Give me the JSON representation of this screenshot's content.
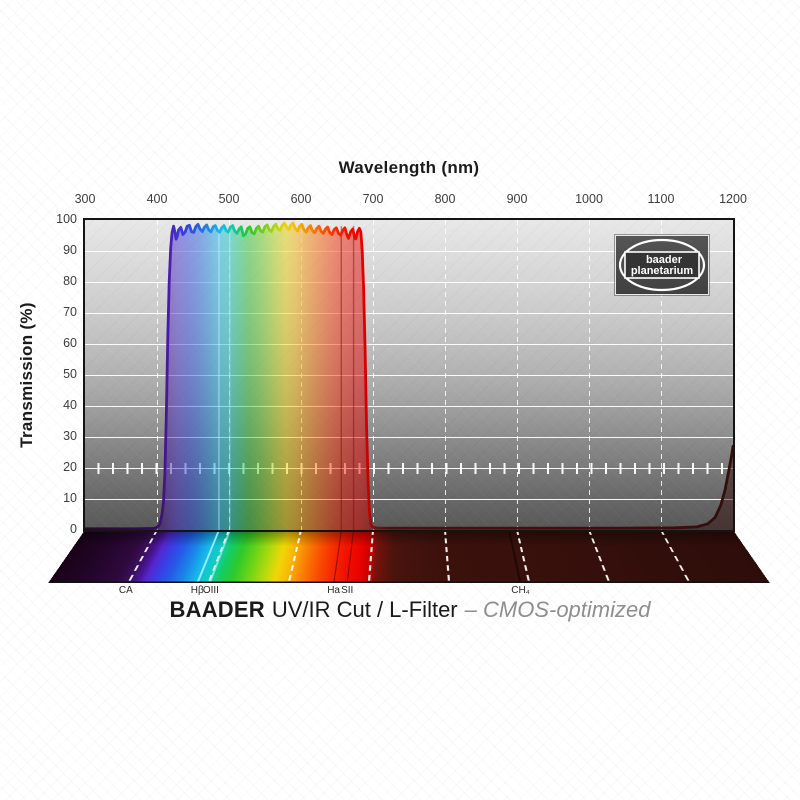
{
  "axes": {
    "x": {
      "title": "Wavelength (nm)",
      "ticks": [
        300,
        400,
        500,
        600,
        700,
        800,
        900,
        1000,
        1100,
        1200
      ]
    },
    "y": {
      "title": "Transmission (%)",
      "ticks": [
        0,
        10,
        20,
        30,
        40,
        50,
        60,
        70,
        80,
        90,
        100
      ]
    }
  },
  "logo": {
    "line1": "baader",
    "line2": "planetarium"
  },
  "caption": {
    "brand": "BAADER",
    "product": "UV/IR Cut / L-Filter",
    "variant": "– CMOS-optimized"
  },
  "floor_labels": [
    {
      "text": "CA",
      "nm": 397
    },
    {
      "text": "Hβ",
      "nm": 486
    },
    {
      "text": "OIII",
      "nm": 503
    },
    {
      "text": "Ha",
      "nm": 656
    },
    {
      "text": "SII",
      "nm": 673
    },
    {
      "text": "CH₄",
      "nm": 889
    }
  ],
  "chart_data": {
    "type": "area",
    "title": "BAADER UV/IR Cut / L-Filter – CMOS-optimized",
    "xlabel": "Wavelength (nm)",
    "ylabel": "Transmission (%)",
    "xlim": [
      300,
      1200
    ],
    "ylim": [
      0,
      100
    ],
    "x_ticks": [
      300,
      400,
      500,
      600,
      700,
      800,
      900,
      1000,
      1100,
      1200
    ],
    "y_ticks": [
      0,
      10,
      20,
      30,
      40,
      50,
      60,
      70,
      80,
      90,
      100
    ],
    "grid": {
      "h_step_percent": 10,
      "v_dashed_nm": [
        400,
        500,
        600,
        700,
        800,
        900,
        1000,
        1100
      ],
      "ruler_percent": 20
    },
    "passband_nm": [
      415,
      697
    ],
    "series": [
      {
        "name": "L-Filter transmission",
        "points": [
          [
            300,
            0.4
          ],
          [
            370,
            0.4
          ],
          [
            396,
            0.5
          ],
          [
            401,
            1
          ],
          [
            404,
            2
          ],
          [
            407,
            5
          ],
          [
            409,
            9
          ],
          [
            411,
            18
          ],
          [
            413,
            38
          ],
          [
            415,
            62
          ],
          [
            417,
            80
          ],
          [
            419,
            91
          ],
          [
            421,
            96
          ],
          [
            423,
            98
          ],
          [
            425,
            96
          ],
          [
            426.5,
            93.8
          ],
          [
            428,
            94.6
          ],
          [
            430,
            96.8
          ],
          [
            433,
            97.6
          ],
          [
            436,
            95.3
          ],
          [
            439,
            96.1
          ],
          [
            442,
            98
          ],
          [
            445,
            98.3
          ],
          [
            448,
            96.2
          ],
          [
            451,
            96
          ],
          [
            454,
            97.9
          ],
          [
            457,
            98.6
          ],
          [
            460,
            97
          ],
          [
            463,
            96.3
          ],
          [
            466,
            97.7
          ],
          [
            469,
            98.4
          ],
          [
            472,
            96.8
          ],
          [
            475,
            96.2
          ],
          [
            478,
            97.8
          ],
          [
            481,
            98.2
          ],
          [
            484,
            96.6
          ],
          [
            487,
            96.1
          ],
          [
            490,
            97.5
          ],
          [
            493,
            98.2
          ],
          [
            496,
            96.6
          ],
          [
            499,
            96.1
          ],
          [
            502,
            97.7
          ],
          [
            505,
            98.2
          ],
          [
            508,
            96.4
          ],
          [
            511,
            95.7
          ],
          [
            514,
            97.1
          ],
          [
            517,
            97.8
          ],
          [
            520,
            94.9
          ],
          [
            523,
            95.5
          ],
          [
            526,
            97.3
          ],
          [
            529,
            97.8
          ],
          [
            532,
            95.9
          ],
          [
            535,
            95.5
          ],
          [
            538,
            97.3
          ],
          [
            541,
            98
          ],
          [
            544,
            96.5
          ],
          [
            547,
            96.1
          ],
          [
            550,
            97.9
          ],
          [
            553,
            98.4
          ],
          [
            556,
            96.8
          ],
          [
            559,
            96.3
          ],
          [
            562,
            97.9
          ],
          [
            565,
            98.6
          ],
          [
            568,
            97.1
          ],
          [
            571,
            96.7
          ],
          [
            574,
            98.3
          ],
          [
            577,
            99
          ],
          [
            580,
            97.7
          ],
          [
            583,
            96.9
          ],
          [
            586,
            98.4
          ],
          [
            589,
            99
          ],
          [
            592,
            97.3
          ],
          [
            595,
            96.5
          ],
          [
            598,
            97.9
          ],
          [
            601,
            98.6
          ],
          [
            604,
            96.9
          ],
          [
            607,
            96.1
          ],
          [
            610,
            97.5
          ],
          [
            613,
            98.2
          ],
          [
            616,
            96.5
          ],
          [
            619,
            95.9
          ],
          [
            622,
            97.3
          ],
          [
            625,
            98
          ],
          [
            628,
            96.3
          ],
          [
            631,
            95.7
          ],
          [
            634,
            97.1
          ],
          [
            637,
            97.7
          ],
          [
            640,
            95.9
          ],
          [
            643,
            95.3
          ],
          [
            646,
            96.9
          ],
          [
            649,
            97.5
          ],
          [
            652,
            95.7
          ],
          [
            655,
            95.1
          ],
          [
            658,
            96.7
          ],
          [
            661,
            97.5
          ],
          [
            664,
            94.9
          ],
          [
            666,
            94.1
          ],
          [
            669,
            96.3
          ],
          [
            672,
            97.1
          ],
          [
            674,
            94.7
          ],
          [
            676,
            93.9
          ],
          [
            679,
            96.5
          ],
          [
            681,
            97.3
          ],
          [
            683,
            96.2
          ],
          [
            685,
            90
          ],
          [
            687,
            78
          ],
          [
            689,
            58
          ],
          [
            691,
            34
          ],
          [
            693,
            16
          ],
          [
            695,
            6
          ],
          [
            697,
            2
          ],
          [
            699,
            1
          ],
          [
            705,
            0.6
          ],
          [
            760,
            0.6
          ],
          [
            900,
            0.6
          ],
          [
            1050,
            0.6
          ],
          [
            1120,
            0.7
          ],
          [
            1150,
            1
          ],
          [
            1165,
            2
          ],
          [
            1175,
            4
          ],
          [
            1183,
            8
          ],
          [
            1189,
            13
          ],
          [
            1194,
            19
          ],
          [
            1198,
            24
          ],
          [
            1200,
            27
          ]
        ]
      }
    ],
    "spectral_lines": [
      {
        "label": "CA",
        "nm": 397
      },
      {
        "label": "Hβ",
        "nm": 486
      },
      {
        "label": "OIII",
        "nm": 501
      },
      {
        "label": "Ha",
        "nm": 656
      },
      {
        "label": "SII",
        "nm": 673
      },
      {
        "label": "CH₄",
        "nm": 889
      }
    ],
    "gradient_stops": [
      [
        300,
        "#2a0a28"
      ],
      [
        395,
        "#330b52"
      ],
      [
        408,
        "#3f1280"
      ],
      [
        418,
        "#4a1fb2"
      ],
      [
        428,
        "#4431d2"
      ],
      [
        443,
        "#2f46e0"
      ],
      [
        458,
        "#2563e4"
      ],
      [
        472,
        "#1b8ae4"
      ],
      [
        486,
        "#16b5e8"
      ],
      [
        500,
        "#10c9c0"
      ],
      [
        514,
        "#17c96e"
      ],
      [
        528,
        "#2ec72e"
      ],
      [
        546,
        "#6ccf1a"
      ],
      [
        564,
        "#b3d60e"
      ],
      [
        579,
        "#ecd309"
      ],
      [
        592,
        "#f8bb07"
      ],
      [
        606,
        "#fa9305"
      ],
      [
        620,
        "#fa6d03"
      ],
      [
        636,
        "#f94602"
      ],
      [
        652,
        "#f42300"
      ],
      [
        668,
        "#ee0e00"
      ],
      [
        684,
        "#e80200"
      ],
      [
        694,
        "#c00300"
      ],
      [
        702,
        "#701410"
      ],
      [
        725,
        "#49120d"
      ],
      [
        1200,
        "#330e0b"
      ]
    ],
    "floor_gradient_stops": [
      [
        300,
        "#190317"
      ],
      [
        350,
        "#24052c"
      ],
      [
        385,
        "#30093f"
      ],
      [
        400,
        "#3b0f63"
      ],
      [
        410,
        "#471493"
      ],
      [
        420,
        "#5527cf"
      ],
      [
        432,
        "#3a3ce5"
      ],
      [
        448,
        "#255ae8"
      ],
      [
        465,
        "#1b85e8"
      ],
      [
        482,
        "#14b9ec"
      ],
      [
        497,
        "#0fcec0"
      ],
      [
        512,
        "#15cc62"
      ],
      [
        528,
        "#2eca2b"
      ],
      [
        548,
        "#70d416"
      ],
      [
        568,
        "#b9da0c"
      ],
      [
        582,
        "#efd708"
      ],
      [
        594,
        "#f8bd06"
      ],
      [
        608,
        "#fa9204"
      ],
      [
        622,
        "#fa6b03"
      ],
      [
        638,
        "#f94402"
      ],
      [
        656,
        "#f52100"
      ],
      [
        672,
        "#ef0d00"
      ],
      [
        688,
        "#e80200"
      ],
      [
        698,
        "#c60300"
      ],
      [
        708,
        "#75120c"
      ],
      [
        730,
        "#4a130e"
      ],
      [
        790,
        "#3c110c"
      ],
      [
        1200,
        "#2d0d0a"
      ]
    ],
    "plot_markers": [
      {
        "nm": 486,
        "color": "rgba(205,248,255,0.5)",
        "w": 1.3
      },
      {
        "nm": 501,
        "color": "rgba(205,248,255,0.4)",
        "w": 1.3
      },
      {
        "nm": 656,
        "color": "rgba(120,10,0,0.45)",
        "w": 1.4
      },
      {
        "nm": 673,
        "color": "rgba(120,10,0,0.45)",
        "w": 1.4
      }
    ],
    "floor_markers": [
      {
        "nm": 486,
        "color": "rgba(185,246,255,0.8)",
        "w": 1.6
      },
      {
        "nm": 501,
        "color": "rgba(185,246,255,0.6)",
        "w": 1.6
      },
      {
        "nm": 656,
        "color": "rgba(70,0,0,0.55)",
        "w": 1.6
      },
      {
        "nm": 673,
        "color": "rgba(70,0,0,0.55)",
        "w": 1.6
      },
      {
        "nm": 889,
        "color": "rgba(10,0,0,0.5)",
        "w": 2
      }
    ],
    "colors": {
      "background_top": "#e8e8e8",
      "background_bottom": "#585858",
      "gridline": "#ffffff",
      "frame": "#141414"
    }
  }
}
